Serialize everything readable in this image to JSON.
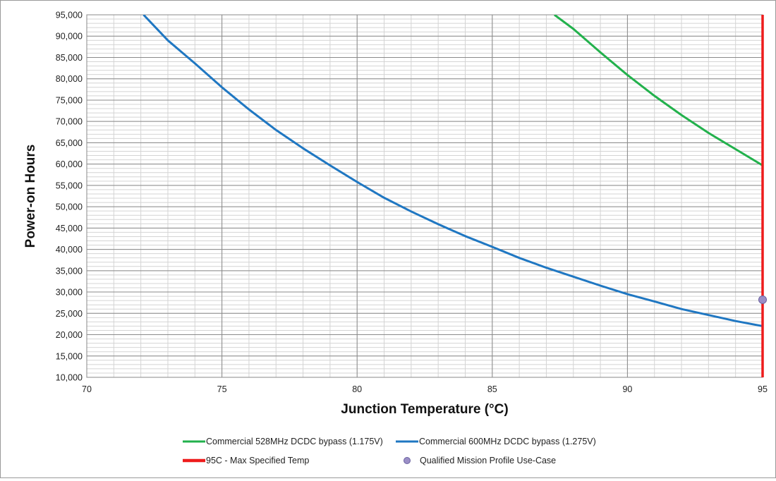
{
  "chart_data": {
    "type": "line",
    "title": "",
    "xlabel": "Junction Temperature (°C)",
    "ylabel": "Power-on Hours",
    "xlim": [
      70,
      95
    ],
    "ylim": [
      10000,
      95000
    ],
    "xticks": [
      70,
      75,
      80,
      85,
      90,
      95
    ],
    "xtick_labels": [
      "70",
      "75",
      "80",
      "85",
      "90",
      "95"
    ],
    "yticks": [
      10000,
      15000,
      20000,
      25000,
      30000,
      35000,
      40000,
      45000,
      50000,
      55000,
      60000,
      65000,
      70000,
      75000,
      80000,
      85000,
      90000,
      95000
    ],
    "ytick_labels": [
      "10,000",
      "15,000",
      "20,000",
      "25,000",
      "30,000",
      "35,000",
      "40,000",
      "45,000",
      "50,000",
      "55,000",
      "60,000",
      "65,000",
      "70,000",
      "75,000",
      "80,000",
      "85,000",
      "90,000",
      "95,000"
    ],
    "grid": true,
    "legend_position": "bottom",
    "series": [
      {
        "name": "Commercial 528MHz DCDC bypass (1.175V)",
        "color": "#22b14c",
        "kind": "line",
        "x": [
          87.3,
          88,
          89,
          90,
          91,
          92,
          93,
          94,
          95
        ],
        "y": [
          95000,
          91700,
          86200,
          80900,
          76000,
          71500,
          67300,
          63500,
          59700
        ]
      },
      {
        "name": "Commercial 600MHz DCDC bypass (1.275V)",
        "color": "#1f77c2",
        "kind": "line",
        "x": [
          72.1,
          73,
          74,
          75,
          76,
          77,
          78,
          79,
          80,
          81,
          82,
          83,
          84,
          85,
          86,
          87,
          88,
          89,
          90,
          91,
          92,
          93,
          94,
          95
        ],
        "y": [
          95000,
          89000,
          83600,
          78000,
          72800,
          68000,
          63700,
          59700,
          55800,
          52100,
          48900,
          45900,
          43100,
          40600,
          38000,
          35700,
          33600,
          31500,
          29500,
          27800,
          26000,
          24600,
          23200,
          22000
        ]
      },
      {
        "name": "95C - Max Specified Temp",
        "color": "#ee1c1c",
        "kind": "vline",
        "x": [
          95,
          95
        ],
        "y": [
          10000,
          95000
        ]
      },
      {
        "name": "Qualified Mission Profile Use-Case",
        "color": "#9b8fc7",
        "kind": "point",
        "x": [
          95
        ],
        "y": [
          28200
        ]
      }
    ]
  }
}
